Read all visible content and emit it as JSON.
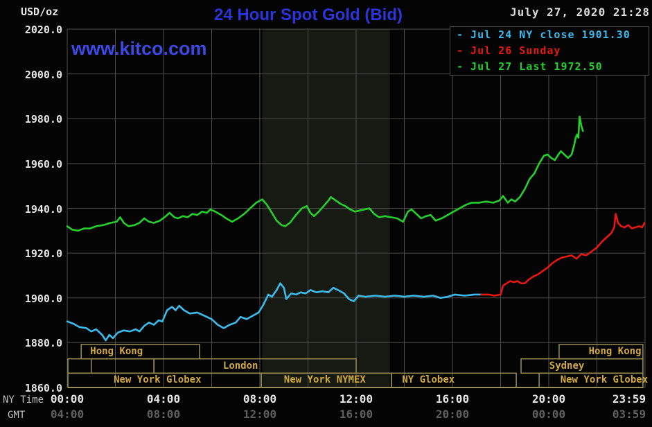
{
  "header": {
    "title": "24 Hour Spot Gold (Bid)",
    "datetime": "July 27, 2020 21:28"
  },
  "watermark": "www.kitco.com",
  "legend": {
    "items": [
      {
        "text": "- Jul 24 NY close 1901.30",
        "color": "#3bbcec"
      },
      {
        "text": "- Jul 26 Sunday",
        "color": "#e8170f"
      },
      {
        "text": "- Jul 27 Last 1972.50",
        "color": "#25d02c"
      }
    ]
  },
  "y_axis": {
    "unit": "USD/oz",
    "ticks": [
      {
        "label": "2020.0",
        "value": 2020
      },
      {
        "label": "2000.0",
        "value": 2000
      },
      {
        "label": "1980.0",
        "value": 1980
      },
      {
        "label": "1960.0",
        "value": 1960
      },
      {
        "label": "1940.0",
        "value": 1940
      },
      {
        "label": "1920.0",
        "value": 1920
      },
      {
        "label": "1900.0",
        "value": 1900
      },
      {
        "label": "1880.0",
        "value": 1880
      },
      {
        "label": "1860.0",
        "value": 1860
      }
    ]
  },
  "x_axis": {
    "ny_label": "NY Time",
    "gmt_label": "GMT",
    "ticks": [
      {
        "ny": "00:00",
        "gmt": "04:00",
        "hour": 0
      },
      {
        "ny": "04:00",
        "gmt": "08:00",
        "hour": 4
      },
      {
        "ny": "08:00",
        "gmt": "12:00",
        "hour": 8
      },
      {
        "ny": "12:00",
        "gmt": "16:00",
        "hour": 12
      },
      {
        "ny": "16:00",
        "gmt": "20:00",
        "hour": 16
      },
      {
        "ny": "20:00",
        "gmt": "00:00",
        "hour": 20
      },
      {
        "ny": "23:59",
        "gmt": "03:59",
        "hour": 23.98
      }
    ]
  },
  "sessions": {
    "rows": [
      {
        "boxes": [
          {
            "label": "Hong Kong",
            "start": 0.58,
            "end": 5.5,
            "label_hour": 2.05
          },
          {
            "label": "Hong Kong",
            "start": 20.43,
            "end": 23.91,
            "label_hour": 22.75
          }
        ]
      },
      {
        "boxes": [
          {
            "label": "",
            "start": 0.03,
            "end": 1.0
          },
          {
            "label": "",
            "start": 1.0,
            "end": 3.6
          },
          {
            "label": "London",
            "start": 3.6,
            "end": 12.0,
            "label_hour": 7.2
          },
          {
            "label": "Sydney",
            "start": 18.85,
            "end": 23.91,
            "label_hour": 20.75
          }
        ]
      },
      {
        "boxes": [
          {
            "label": "New York Globex",
            "start": 0.03,
            "end": 8.06,
            "label_hour": 3.75
          },
          {
            "label": "New York NYMEX",
            "start": 8.06,
            "end": 13.47,
            "label_hour": 10.7
          },
          {
            "label": "NY Globex",
            "start": 13.47,
            "end": 18.65,
            "label_hour": 15.0
          },
          {
            "label": "New York Globex",
            "start": 19.6,
            "end": 23.91,
            "label_hour": 22.3
          }
        ]
      }
    ]
  },
  "colors": {
    "background": "#040404",
    "grid": "#4d4d4d",
    "plot_border": "#4d4d4d",
    "session_border": "#9a8e54",
    "session_text": "#d1a93d",
    "title": "#2b35d9",
    "watermark": "#3c49e2",
    "date_text": "#d9d9d9",
    "axis_text": "#e6e6e6",
    "axis_row_label": "#c0c0c0",
    "gmt_text": "#5f5f5f",
    "band": "#161a12"
  },
  "chart_data": {
    "type": "line",
    "title": "24 Hour Spot Gold (Bid)",
    "xlabel": "NY Time",
    "ylabel": "USD/oz",
    "ylim": [
      1860,
      2020
    ],
    "xlim_hours": [
      0,
      24
    ],
    "y_gridline_step": 20,
    "x_gridline_step_hours": 2,
    "grid": true,
    "legend_position": "top-right",
    "band": {
      "start_hour": 8.1,
      "end_hour": 13.4
    },
    "series": [
      {
        "name": "Jul 24 NY close 1901.30",
        "color": "#3bbcec",
        "points": [
          [
            0,
            1889.5
          ],
          [
            0.25,
            1888.5
          ],
          [
            0.5,
            1887
          ],
          [
            0.8,
            1886.5
          ],
          [
            1,
            1885
          ],
          [
            1.2,
            1886
          ],
          [
            1.45,
            1883.5
          ],
          [
            1.6,
            1881
          ],
          [
            1.75,
            1883.5
          ],
          [
            1.9,
            1882
          ],
          [
            2.1,
            1884.5
          ],
          [
            2.35,
            1885.5
          ],
          [
            2.6,
            1885
          ],
          [
            2.85,
            1886
          ],
          [
            3,
            1885
          ],
          [
            3.2,
            1887.5
          ],
          [
            3.4,
            1889
          ],
          [
            3.6,
            1888
          ],
          [
            3.8,
            1890
          ],
          [
            3.95,
            1889.5
          ],
          [
            4.15,
            1894.5
          ],
          [
            4.35,
            1896
          ],
          [
            4.5,
            1894.5
          ],
          [
            4.65,
            1896.5
          ],
          [
            4.85,
            1894.5
          ],
          [
            5.1,
            1893
          ],
          [
            5.4,
            1893.5
          ],
          [
            5.7,
            1892
          ],
          [
            6,
            1890.5
          ],
          [
            6.25,
            1888
          ],
          [
            6.5,
            1886.5
          ],
          [
            6.75,
            1888
          ],
          [
            7,
            1889
          ],
          [
            7.2,
            1891.5
          ],
          [
            7.45,
            1890.5
          ],
          [
            7.7,
            1892
          ],
          [
            7.95,
            1893.5
          ],
          [
            8.15,
            1897
          ],
          [
            8.35,
            1901.5
          ],
          [
            8.5,
            1900.5
          ],
          [
            8.7,
            1903.5
          ],
          [
            8.85,
            1906.5
          ],
          [
            9,
            1904.5
          ],
          [
            9.1,
            1899.5
          ],
          [
            9.3,
            1902
          ],
          [
            9.5,
            1901.5
          ],
          [
            9.7,
            1902.5
          ],
          [
            9.9,
            1902
          ],
          [
            10.1,
            1903.5
          ],
          [
            10.35,
            1902.5
          ],
          [
            10.6,
            1903
          ],
          [
            10.85,
            1902.5
          ],
          [
            11.05,
            1904.5
          ],
          [
            11.25,
            1903.5
          ],
          [
            11.5,
            1902
          ],
          [
            11.7,
            1899.5
          ],
          [
            11.9,
            1898.5
          ],
          [
            12.1,
            1901
          ],
          [
            12.4,
            1900.5
          ],
          [
            12.8,
            1901
          ],
          [
            13.2,
            1900.5
          ],
          [
            13.6,
            1901
          ],
          [
            14,
            1900.5
          ],
          [
            14.4,
            1901
          ],
          [
            14.8,
            1900.5
          ],
          [
            15.2,
            1901
          ],
          [
            15.5,
            1900
          ],
          [
            15.8,
            1900.5
          ],
          [
            16.1,
            1901.5
          ],
          [
            16.5,
            1901
          ],
          [
            16.9,
            1901.5
          ],
          [
            17.2,
            1901.5
          ]
        ]
      },
      {
        "name": "Jul 26 Sunday",
        "color": "#e8170f",
        "points": [
          [
            17.2,
            1901.5
          ],
          [
            17.5,
            1901.5
          ],
          [
            17.75,
            1901
          ],
          [
            18,
            1901.5
          ],
          [
            18.1,
            1905.5
          ],
          [
            18.25,
            1906.5
          ],
          [
            18.4,
            1907.5
          ],
          [
            18.55,
            1907
          ],
          [
            18.7,
            1907.5
          ],
          [
            18.85,
            1906.5
          ],
          [
            19,
            1906.5
          ],
          [
            19.15,
            1908
          ],
          [
            19.35,
            1909.5
          ],
          [
            19.55,
            1910.5
          ],
          [
            19.75,
            1912
          ],
          [
            19.95,
            1913.5
          ],
          [
            20.15,
            1915.5
          ],
          [
            20.35,
            1917
          ],
          [
            20.55,
            1918
          ],
          [
            20.75,
            1918.5
          ],
          [
            20.95,
            1919
          ],
          [
            21.15,
            1917.5
          ],
          [
            21.35,
            1919.5
          ],
          [
            21.55,
            1919
          ],
          [
            21.75,
            1920.5
          ],
          [
            22,
            1922.5
          ],
          [
            22.2,
            1925
          ],
          [
            22.4,
            1927
          ],
          [
            22.6,
            1929
          ],
          [
            22.72,
            1931.5
          ],
          [
            22.78,
            1937.5
          ],
          [
            22.88,
            1933.5
          ],
          [
            23,
            1932
          ],
          [
            23.15,
            1931.5
          ],
          [
            23.3,
            1932.5
          ],
          [
            23.45,
            1931
          ],
          [
            23.6,
            1931.5
          ],
          [
            23.75,
            1932
          ],
          [
            23.88,
            1931.5
          ],
          [
            23.98,
            1933.5
          ]
        ]
      },
      {
        "name": "Jul 27 Last 1972.50",
        "color": "#25d02c",
        "points": [
          [
            0,
            1932
          ],
          [
            0.2,
            1930.5
          ],
          [
            0.45,
            1930
          ],
          [
            0.7,
            1931
          ],
          [
            0.95,
            1931
          ],
          [
            1.2,
            1932
          ],
          [
            1.5,
            1932.5
          ],
          [
            1.8,
            1933.5
          ],
          [
            2.05,
            1934
          ],
          [
            2.2,
            1936
          ],
          [
            2.35,
            1933.5
          ],
          [
            2.55,
            1932
          ],
          [
            2.8,
            1932.5
          ],
          [
            3,
            1933.5
          ],
          [
            3.2,
            1935.5
          ],
          [
            3.4,
            1934
          ],
          [
            3.6,
            1933.5
          ],
          [
            3.85,
            1934.5
          ],
          [
            4.1,
            1936.5
          ],
          [
            4.25,
            1938
          ],
          [
            4.45,
            1936
          ],
          [
            4.6,
            1935.5
          ],
          [
            4.8,
            1936.5
          ],
          [
            5,
            1936
          ],
          [
            5.2,
            1937.5
          ],
          [
            5.4,
            1937
          ],
          [
            5.6,
            1938.5
          ],
          [
            5.8,
            1938
          ],
          [
            5.95,
            1939.5
          ],
          [
            6.15,
            1938.5
          ],
          [
            6.4,
            1937
          ],
          [
            6.6,
            1935.5
          ],
          [
            6.85,
            1934
          ],
          [
            7.1,
            1935.5
          ],
          [
            7.35,
            1937.5
          ],
          [
            7.6,
            1940
          ],
          [
            7.85,
            1942.5
          ],
          [
            8.1,
            1944
          ],
          [
            8.3,
            1941.5
          ],
          [
            8.5,
            1938
          ],
          [
            8.7,
            1934.5
          ],
          [
            8.9,
            1932.5
          ],
          [
            9.05,
            1932
          ],
          [
            9.25,
            1933.5
          ],
          [
            9.5,
            1937
          ],
          [
            9.75,
            1940
          ],
          [
            9.95,
            1941
          ],
          [
            10.1,
            1938
          ],
          [
            10.25,
            1936.5
          ],
          [
            10.45,
            1938.5
          ],
          [
            10.65,
            1941
          ],
          [
            10.85,
            1943.5
          ],
          [
            10.95,
            1945
          ],
          [
            11.15,
            1943.5
          ],
          [
            11.35,
            1942
          ],
          [
            11.55,
            1941
          ],
          [
            11.75,
            1939.5
          ],
          [
            11.95,
            1938.5
          ],
          [
            12.15,
            1939
          ],
          [
            12.35,
            1939.5
          ],
          [
            12.55,
            1940
          ],
          [
            12.75,
            1937.5
          ],
          [
            12.95,
            1936
          ],
          [
            13.2,
            1936.5
          ],
          [
            13.45,
            1936
          ],
          [
            13.7,
            1935.5
          ],
          [
            13.95,
            1934
          ],
          [
            14.15,
            1938.5
          ],
          [
            14.3,
            1939.5
          ],
          [
            14.5,
            1937.5
          ],
          [
            14.7,
            1935.5
          ],
          [
            14.9,
            1936.5
          ],
          [
            15.1,
            1937
          ],
          [
            15.3,
            1934.5
          ],
          [
            15.55,
            1935.5
          ],
          [
            15.8,
            1937
          ],
          [
            16.05,
            1938.5
          ],
          [
            16.3,
            1940
          ],
          [
            16.55,
            1941.5
          ],
          [
            16.8,
            1942.5
          ],
          [
            17.1,
            1942.5
          ],
          [
            17.4,
            1943
          ],
          [
            17.7,
            1942.5
          ],
          [
            17.95,
            1943.5
          ],
          [
            18.1,
            1945.5
          ],
          [
            18.3,
            1942.5
          ],
          [
            18.45,
            1944
          ],
          [
            18.6,
            1943
          ],
          [
            18.8,
            1945
          ],
          [
            19,
            1948.5
          ],
          [
            19.2,
            1953
          ],
          [
            19.4,
            1955.5
          ],
          [
            19.6,
            1960
          ],
          [
            19.8,
            1963.5
          ],
          [
            19.95,
            1964
          ],
          [
            20.1,
            1962.5
          ],
          [
            20.25,
            1961.5
          ],
          [
            20.4,
            1964
          ],
          [
            20.5,
            1965.5
          ],
          [
            20.65,
            1964
          ],
          [
            20.8,
            1962.5
          ],
          [
            20.95,
            1964
          ],
          [
            21.05,
            1968
          ],
          [
            21.12,
            1971.5
          ],
          [
            21.18,
            1973
          ],
          [
            21.23,
            1971.5
          ],
          [
            21.28,
            1981
          ],
          [
            21.35,
            1977
          ],
          [
            21.42,
            1974.5
          ]
        ]
      }
    ]
  }
}
